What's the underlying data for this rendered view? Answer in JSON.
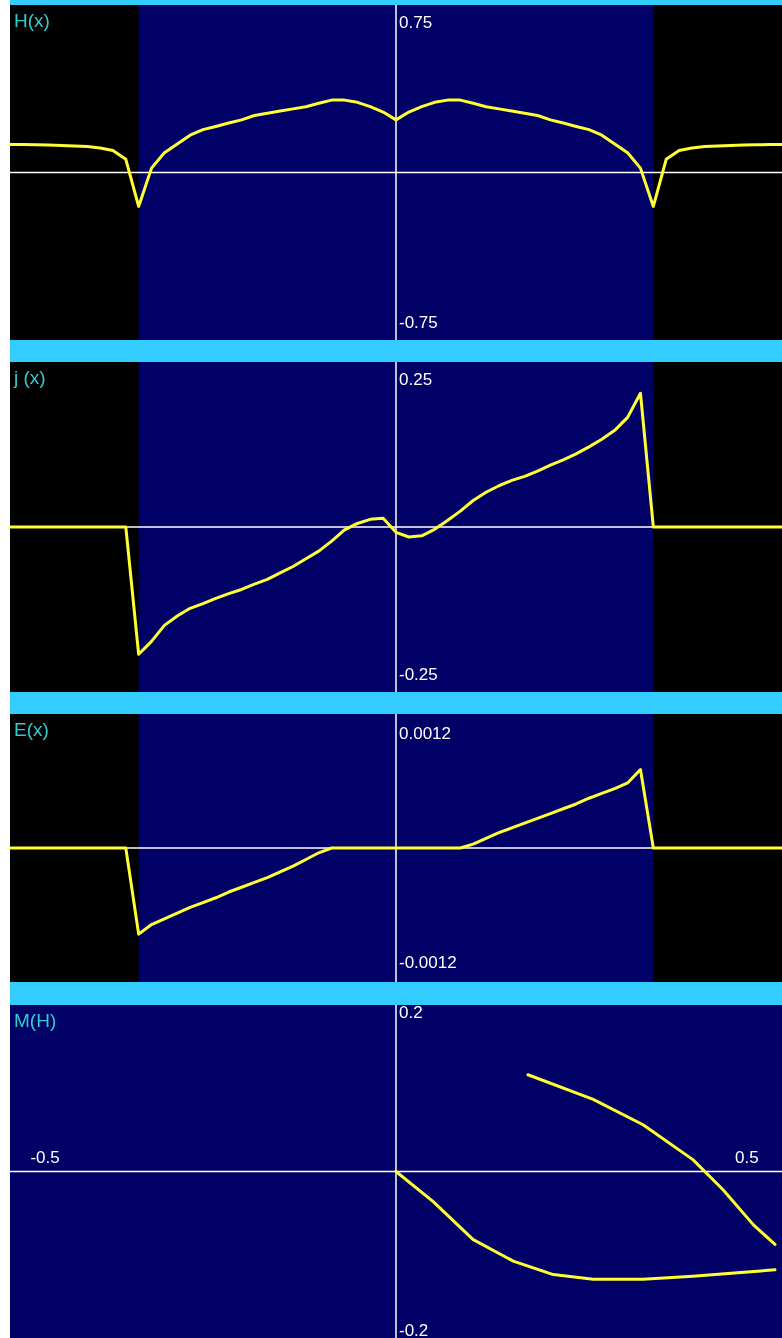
{
  "chart_data": [
    {
      "type": "line",
      "title": "H(x)",
      "categories": [
        null,
        null,
        null,
        null,
        null,
        null,
        null,
        null,
        null,
        null,
        null,
        null,
        null,
        null,
        null,
        null,
        null,
        null,
        null,
        null,
        null,
        null,
        null,
        null,
        null,
        null,
        null,
        null,
        null,
        null,
        null,
        null,
        null,
        null,
        null,
        null,
        null,
        null,
        null,
        null,
        null,
        null,
        null,
        null,
        null,
        null,
        null,
        null,
        null,
        null,
        null,
        null,
        null,
        null,
        null,
        null,
        null,
        null,
        null,
        null,
        null
      ],
      "ylim": [
        -0.84,
        0.84
      ],
      "yticks": [
        0.75,
        -0.75
      ],
      "tick_labels": "y",
      "line_style": "solid",
      "series": [
        {
          "color": "#ffff33",
          "values": [
            0.14,
            0.14,
            0.139,
            0.138,
            0.136,
            0.133,
            0.13,
            0.123,
            0.11,
            0.066,
            -0.17,
            0.022,
            0.099,
            0.143,
            0.187,
            0.215,
            0.231,
            0.248,
            0.264,
            0.286,
            0.297,
            0.308,
            0.319,
            0.33,
            0.347,
            0.363,
            0.363,
            0.352,
            0.33,
            0.303,
            0.264,
            0.303,
            0.33,
            0.352,
            0.363,
            0.363,
            0.347,
            0.33,
            0.319,
            0.308,
            0.297,
            0.286,
            0.264,
            0.248,
            0.231,
            0.215,
            0.187,
            0.143,
            0.099,
            0.022,
            -0.17,
            0.066,
            0.11,
            0.123,
            0.13,
            0.133,
            0.136,
            0.138,
            0.139,
            0.14,
            0.14
          ]
        }
      ]
    },
    {
      "type": "line",
      "title": "j (x)",
      "categories": [
        null,
        null,
        null,
        null,
        null,
        null,
        null,
        null,
        null,
        null,
        null,
        null,
        null,
        null,
        null,
        null,
        null,
        null,
        null,
        null,
        null,
        null,
        null,
        null,
        null,
        null,
        null,
        null,
        null,
        null,
        null,
        null,
        null,
        null,
        null,
        null,
        null,
        null,
        null,
        null,
        null,
        null,
        null,
        null,
        null,
        null,
        null,
        null,
        null,
        null,
        null,
        null,
        null,
        null,
        null,
        null,
        null,
        null,
        null,
        null,
        null
      ],
      "ylim": [
        -0.28,
        0.28
      ],
      "yticks": [
        0.25,
        -0.25
      ],
      "tick_labels": "y",
      "line_style": "solid",
      "series": [
        {
          "color": "#ffff33",
          "values": [
            0,
            0,
            0,
            0,
            0,
            0,
            0,
            0,
            0,
            0,
            -0.216,
            -0.194,
            -0.167,
            -0.151,
            -0.138,
            -0.13,
            -0.121,
            -0.113,
            -0.106,
            -0.097,
            -0.089,
            -0.078,
            -0.067,
            -0.054,
            -0.041,
            -0.024,
            -0.005,
            0.006,
            0.013,
            0.015,
            -0.009,
            -0.017,
            -0.015,
            -0.004,
            0.011,
            0.027,
            0.045,
            0.059,
            0.07,
            0.079,
            0.086,
            0.095,
            0.105,
            0.114,
            0.124,
            0.136,
            0.149,
            0.164,
            0.186,
            0.227,
            0,
            0,
            0,
            0,
            0,
            0,
            0,
            0,
            0,
            0,
            0
          ]
        }
      ]
    },
    {
      "type": "line",
      "title": "E(x)",
      "categories": [
        null,
        null,
        null,
        null,
        null,
        null,
        null,
        null,
        null,
        null,
        null,
        null,
        null,
        null,
        null,
        null,
        null,
        null,
        null,
        null,
        null,
        null,
        null,
        null,
        null,
        null,
        null,
        null,
        null,
        null,
        null,
        null,
        null,
        null,
        null,
        null,
        null,
        null,
        null,
        null,
        null,
        null,
        null,
        null,
        null,
        null,
        null,
        null,
        null,
        null,
        null,
        null,
        null,
        null,
        null,
        null,
        null,
        null,
        null,
        null,
        null
      ],
      "ylim": [
        -0.0014,
        0.0014
      ],
      "yticks": [
        0.0012,
        -0.0012
      ],
      "tick_labels": "y",
      "line_style": "solid",
      "series": [
        {
          "color": "#ffff33",
          "values": [
            0,
            0,
            0,
            0,
            0,
            0,
            0,
            0,
            0,
            0,
            -0.0009,
            -0.0008,
            -0.00074,
            -0.00068,
            -0.00062,
            -0.00057,
            -0.00052,
            -0.00046,
            -0.00041,
            -0.00036,
            -0.00031,
            -0.00025,
            -0.00019,
            -0.00012,
            -5e-05,
            0,
            0,
            0,
            0,
            0,
            0,
            0,
            0,
            0,
            0,
            0,
            4e-05,
            0.0001,
            0.00016,
            0.00021,
            0.00026,
            0.00031,
            0.00036,
            0.00041,
            0.00046,
            0.00052,
            0.00057,
            0.00062,
            0.00068,
            0.00082,
            0,
            0,
            0,
            0,
            0,
            0,
            0,
            0,
            0,
            0,
            0
          ]
        }
      ]
    },
    {
      "type": "line",
      "title": "M(H)",
      "xlim": [
        -0.55,
        0.55
      ],
      "ylim": [
        -0.21,
        0.21
      ],
      "xticks": [
        -0.5,
        0.5
      ],
      "yticks": [
        0.2,
        -0.2
      ],
      "line_style": "solid",
      "series": [
        {
          "color": "#ffff33",
          "x": [
            0,
            0.053,
            0.11,
            0.167,
            0.224,
            0.281,
            0.352,
            0.423,
            0.54
          ],
          "values": [
            0,
            -0.038,
            -0.086,
            -0.113,
            -0.13,
            -0.136,
            -0.136,
            -0.132,
            -0.124
          ]
        },
        {
          "color": "#ffff33",
          "x": [
            0.188,
            0.281,
            0.352,
            0.423,
            0.466,
            0.509,
            0.54
          ],
          "values": [
            0.122,
            0.091,
            0.059,
            0.015,
            -0.023,
            -0.067,
            -0.092
          ]
        }
      ]
    }
  ]
}
